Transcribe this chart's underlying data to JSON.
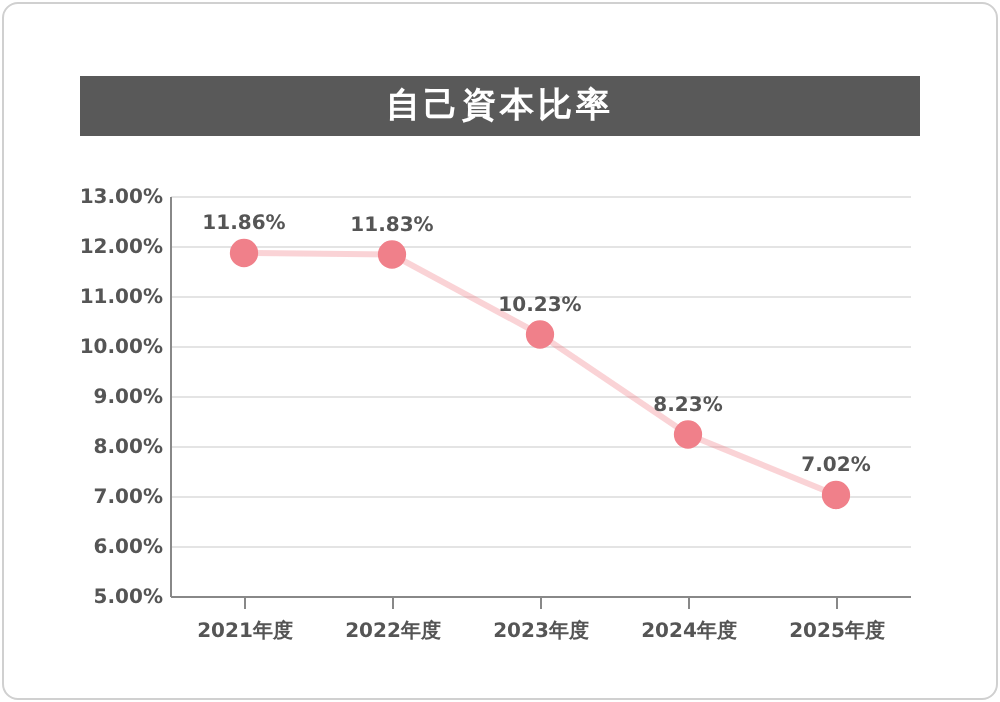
{
  "chart_data": {
    "type": "line",
    "title": "自己資本比率",
    "categories": [
      "2021年度",
      "2022年度",
      "2023年度",
      "2024年度",
      "2025年度"
    ],
    "series": [
      {
        "color": "#f0808a",
        "values": [
          11.86,
          11.83,
          10.23,
          8.23,
          7.02
        ]
      }
    ],
    "value_labels": [
      "11.86%",
      "11.83%",
      "10.23%",
      "8.23%",
      "7.02%"
    ],
    "ylim": [
      5,
      13
    ],
    "yticks": [
      {
        "value": 5,
        "label": "5.00%"
      },
      {
        "value": 6,
        "label": "6.00%"
      },
      {
        "value": 7,
        "label": "7.00%"
      },
      {
        "value": 8,
        "label": "8.00%"
      },
      {
        "value": 9,
        "label": "9.00%"
      },
      {
        "value": 10,
        "label": "10.00%"
      },
      {
        "value": 11,
        "label": "11.00%"
      },
      {
        "value": 12,
        "label": "12.00%"
      },
      {
        "value": 13,
        "label": "13.00%"
      }
    ],
    "grid": "y",
    "marker": "circle",
    "line_style": "solid"
  }
}
